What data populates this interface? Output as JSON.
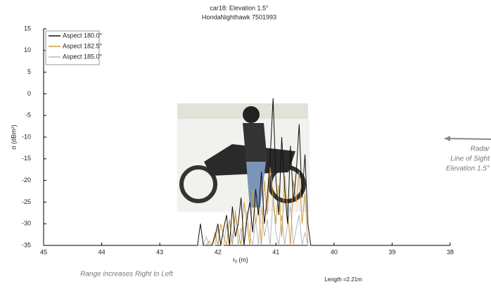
{
  "chart_data": {
    "type": "line",
    "title": [
      "car18:  Elevation 1.5°",
      "HondaNighthawk 7501993"
    ],
    "x_label": "rᵧ (m)",
    "y_label": "σ (dBm²)",
    "annotations": {
      "radar": [
        "Radar",
        "Line of Sight",
        "Elevation 1.5°"
      ],
      "range": "Range increases Right to Left",
      "length": "Length =2.21m"
    },
    "x": [
      42.35,
      42.3,
      42.25,
      42.2,
      42.15,
      42.1,
      42.05,
      42.0,
      41.95,
      41.9,
      41.85,
      41.8,
      41.75,
      41.7,
      41.65,
      41.6,
      41.55,
      41.5,
      41.45,
      41.4,
      41.35,
      41.3,
      41.25,
      41.2,
      41.15,
      41.1,
      41.05,
      41.0,
      40.95,
      40.9,
      40.85,
      40.8,
      40.75,
      40.7,
      40.65,
      40.6,
      40.55,
      40.5,
      40.45,
      40.4
    ],
    "series": [
      {
        "name": "Aspect 180.0°",
        "color": "#111111",
        "values": [
          -35,
          -30,
          -35,
          -35,
          -35,
          -35,
          -33,
          -30,
          -35,
          -31,
          -28,
          -35,
          -26,
          -33,
          -30,
          -24,
          -35,
          -29,
          -25,
          -32,
          -22,
          -28,
          -18,
          -30,
          -24,
          -15,
          -1,
          -20,
          -28,
          -10,
          -22,
          -30,
          -12,
          -25,
          -18,
          -7,
          -24,
          -14,
          -30,
          -35
        ]
      },
      {
        "name": "Aspect 182.5°",
        "color": "#d19a3a",
        "values": [
          -35,
          -35,
          -35,
          -35,
          -34,
          -35,
          -32,
          -35,
          -30,
          -33,
          -35,
          -29,
          -35,
          -27,
          -32,
          -35,
          -25,
          -30,
          -35,
          -22,
          -30,
          -26,
          -35,
          -20,
          -28,
          -17,
          -24,
          -30,
          -21,
          -33,
          -19,
          -27,
          -35,
          -20,
          -25,
          -18,
          -30,
          -23,
          -35,
          -35
        ]
      },
      {
        "name": "Aspect 185.0°",
        "color": "#b8b8b8",
        "values": [
          -35,
          -35,
          -35,
          -33,
          -35,
          -35,
          -35,
          -31,
          -35,
          -35,
          -30,
          -35,
          -33,
          -28,
          -35,
          -31,
          -35,
          -27,
          -33,
          -35,
          -29,
          -35,
          -26,
          -33,
          -29,
          -35,
          -24,
          -32,
          -35,
          -28,
          -35,
          -30,
          -26,
          -35,
          -31,
          -28,
          -35,
          -32,
          -35,
          -35
        ]
      }
    ],
    "xlim": [
      45,
      38
    ],
    "ylim": [
      -35,
      15
    ],
    "xticks": [
      45,
      44,
      43,
      42,
      41,
      40,
      39,
      38
    ],
    "yticks": [
      15,
      10,
      5,
      0,
      -5,
      -10,
      -15,
      -20,
      -25,
      -30,
      -35
    ],
    "legend": "upper left"
  }
}
